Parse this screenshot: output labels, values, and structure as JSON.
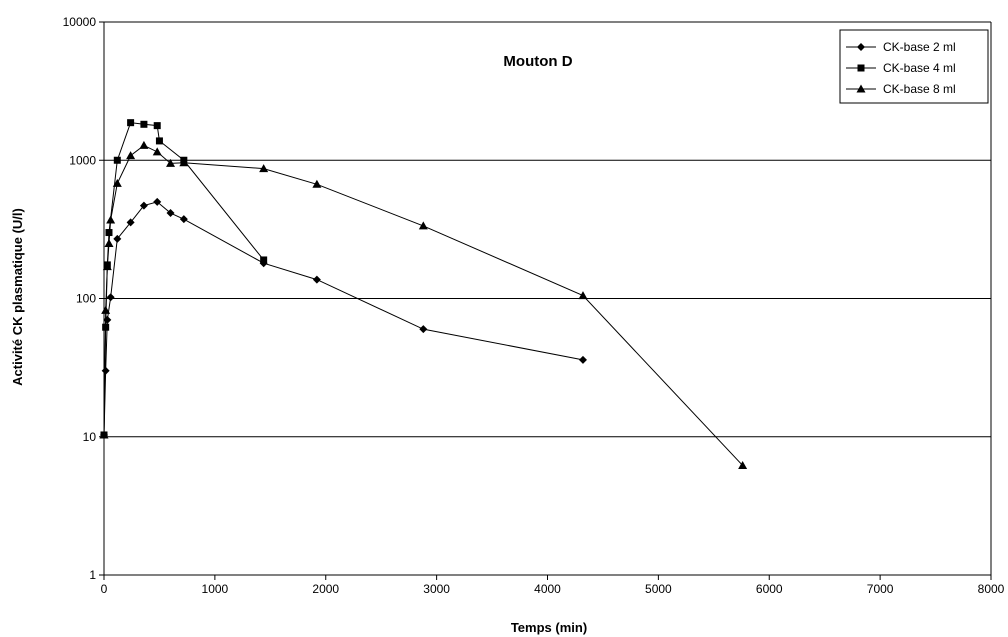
{
  "chart_data": {
    "type": "line",
    "title": "Mouton D",
    "xlabel": "Temps (min)",
    "ylabel": "Activité CK plasmatique (U/l)",
    "xlim": [
      0,
      8000
    ],
    "ylim": [
      1,
      10000
    ],
    "yscale": "log",
    "grid": "horizontal major lines",
    "legend_position": "top-right",
    "x_ticks": [
      "0",
      "1000",
      "2000",
      "3000",
      "4000",
      "5000",
      "6000",
      "7000",
      "8000"
    ],
    "y_ticks": [
      "1",
      "10",
      "100",
      "1000",
      "10000"
    ],
    "series": [
      {
        "name": "CK-base 2 ml",
        "marker": "diamond",
        "color": "#000000",
        "x": [
          0,
          15,
          30,
          60,
          120,
          240,
          360,
          480,
          600,
          720,
          1440,
          1920,
          2880,
          4320
        ],
        "y": [
          10.3,
          30,
          70,
          102,
          270,
          355,
          470,
          500,
          415,
          375,
          180,
          137,
          60,
          36
        ]
      },
      {
        "name": "CK-base 4 ml",
        "marker": "square",
        "color": "#000000",
        "x": [
          0,
          15,
          30,
          45,
          120,
          240,
          360,
          480,
          500,
          720,
          1440
        ],
        "y": [
          10.3,
          62,
          175,
          300,
          1000,
          1870,
          1820,
          1780,
          1380,
          1000,
          190
        ]
      },
      {
        "name": "CK-base 8 ml",
        "marker": "triangle",
        "color": "#000000",
        "x": [
          0,
          15,
          30,
          45,
          60,
          120,
          240,
          360,
          480,
          600,
          720,
          1440,
          1920,
          2880,
          4320,
          5760
        ],
        "y": [
          10.3,
          82,
          170,
          250,
          370,
          680,
          1080,
          1280,
          1150,
          950,
          960,
          870,
          670,
          335,
          105,
          6.2
        ]
      }
    ]
  }
}
